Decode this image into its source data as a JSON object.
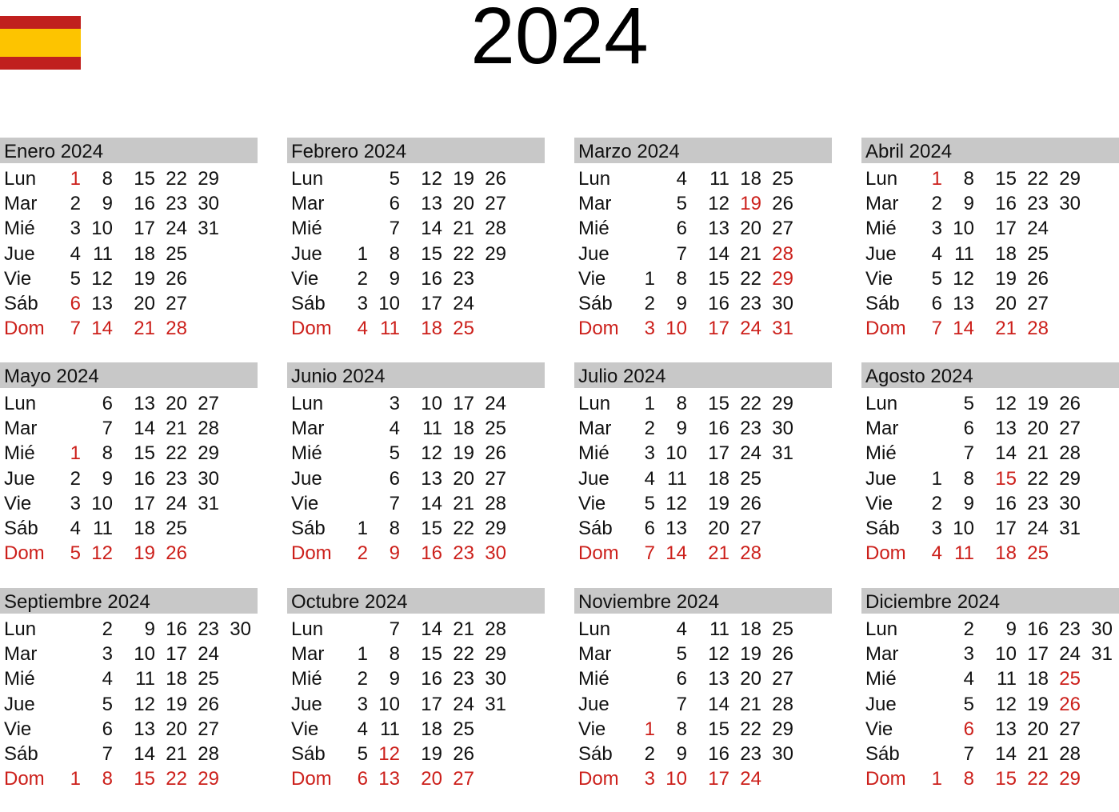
{
  "year": "2024",
  "day_names": [
    "Lun",
    "Mar",
    "Mié",
    "Jue",
    "Vie",
    "Sáb",
    "Dom"
  ],
  "colors": {
    "holiday": "#cc1f1a",
    "header_bg": "#c8c8c8",
    "flag_red": "#c0201e",
    "flag_yellow": "#fdc400"
  },
  "months": [
    {
      "name": "Enero 2024",
      "weeks": [
        [
          1,
          2,
          3,
          4,
          5,
          6,
          7
        ],
        [
          8,
          9,
          10,
          11,
          12,
          13,
          14
        ],
        [
          15,
          16,
          17,
          18,
          19,
          20,
          21
        ],
        [
          22,
          23,
          24,
          25,
          26,
          27,
          28
        ],
        [
          29,
          30,
          31,
          null,
          null,
          null,
          null
        ]
      ],
      "red": [
        1,
        6,
        7,
        14,
        21,
        28
      ]
    },
    {
      "name": "Febrero 2024",
      "weeks": [
        [
          null,
          null,
          null,
          1,
          2,
          3,
          4
        ],
        [
          5,
          6,
          7,
          8,
          9,
          10,
          11
        ],
        [
          12,
          13,
          14,
          15,
          16,
          17,
          18
        ],
        [
          19,
          20,
          21,
          22,
          23,
          24,
          25
        ],
        [
          26,
          27,
          28,
          29,
          null,
          null,
          null
        ]
      ],
      "red": [
        4,
        11,
        18,
        25
      ]
    },
    {
      "name": "Marzo 2024",
      "weeks": [
        [
          null,
          null,
          null,
          null,
          1,
          2,
          3
        ],
        [
          4,
          5,
          6,
          7,
          8,
          9,
          10
        ],
        [
          11,
          12,
          13,
          14,
          15,
          16,
          17
        ],
        [
          18,
          19,
          20,
          21,
          22,
          23,
          24
        ],
        [
          25,
          26,
          27,
          28,
          29,
          30,
          31
        ]
      ],
      "red": [
        3,
        10,
        17,
        19,
        24,
        28,
        29,
        31
      ]
    },
    {
      "name": "Abril 2024",
      "weeks": [
        [
          1,
          2,
          3,
          4,
          5,
          6,
          7
        ],
        [
          8,
          9,
          10,
          11,
          12,
          13,
          14
        ],
        [
          15,
          16,
          17,
          18,
          19,
          20,
          21
        ],
        [
          22,
          23,
          24,
          25,
          26,
          27,
          28
        ],
        [
          29,
          30,
          null,
          null,
          null,
          null,
          null
        ]
      ],
      "red": [
        1,
        7,
        14,
        21,
        28
      ]
    },
    {
      "name": "Mayo 2024",
      "weeks": [
        [
          null,
          null,
          1,
          2,
          3,
          4,
          5
        ],
        [
          6,
          7,
          8,
          9,
          10,
          11,
          12
        ],
        [
          13,
          14,
          15,
          16,
          17,
          18,
          19
        ],
        [
          20,
          21,
          22,
          23,
          24,
          25,
          26
        ],
        [
          27,
          28,
          29,
          30,
          31,
          null,
          null
        ]
      ],
      "red": [
        1,
        5,
        12,
        19,
        26
      ]
    },
    {
      "name": "Junio 2024",
      "weeks": [
        [
          null,
          null,
          null,
          null,
          null,
          1,
          2
        ],
        [
          3,
          4,
          5,
          6,
          7,
          8,
          9
        ],
        [
          10,
          11,
          12,
          13,
          14,
          15,
          16
        ],
        [
          17,
          18,
          19,
          20,
          21,
          22,
          23
        ],
        [
          24,
          25,
          26,
          27,
          28,
          29,
          30
        ]
      ],
      "red": [
        2,
        9,
        16,
        23,
        30
      ]
    },
    {
      "name": "Julio 2024",
      "weeks": [
        [
          1,
          2,
          3,
          4,
          5,
          6,
          7
        ],
        [
          8,
          9,
          10,
          11,
          12,
          13,
          14
        ],
        [
          15,
          16,
          17,
          18,
          19,
          20,
          21
        ],
        [
          22,
          23,
          24,
          25,
          26,
          27,
          28
        ],
        [
          29,
          30,
          31,
          null,
          null,
          null,
          null
        ]
      ],
      "red": [
        7,
        14,
        21,
        28
      ]
    },
    {
      "name": "Agosto 2024",
      "weeks": [
        [
          null,
          null,
          null,
          1,
          2,
          3,
          4
        ],
        [
          5,
          6,
          7,
          8,
          9,
          10,
          11
        ],
        [
          12,
          13,
          14,
          15,
          16,
          17,
          18
        ],
        [
          19,
          20,
          21,
          22,
          23,
          24,
          25
        ],
        [
          26,
          27,
          28,
          29,
          30,
          31,
          null
        ]
      ],
      "red": [
        4,
        11,
        15,
        18,
        25
      ]
    },
    {
      "name": "Septiembre 2024",
      "weeks": [
        [
          null,
          null,
          null,
          null,
          null,
          null,
          1
        ],
        [
          2,
          3,
          4,
          5,
          6,
          7,
          8
        ],
        [
          9,
          10,
          11,
          12,
          13,
          14,
          15
        ],
        [
          16,
          17,
          18,
          19,
          20,
          21,
          22
        ],
        [
          23,
          24,
          25,
          26,
          27,
          28,
          29
        ],
        [
          30,
          null,
          null,
          null,
          null,
          null,
          null
        ]
      ],
      "red": [
        1,
        8,
        15,
        22,
        29
      ]
    },
    {
      "name": "Octubre 2024",
      "weeks": [
        [
          null,
          1,
          2,
          3,
          4,
          5,
          6
        ],
        [
          7,
          8,
          9,
          10,
          11,
          12,
          13
        ],
        [
          14,
          15,
          16,
          17,
          18,
          19,
          20
        ],
        [
          21,
          22,
          23,
          24,
          25,
          26,
          27
        ],
        [
          28,
          29,
          30,
          31,
          null,
          null,
          null
        ]
      ],
      "red": [
        6,
        12,
        13,
        20,
        27
      ]
    },
    {
      "name": "Noviembre 2024",
      "weeks": [
        [
          null,
          null,
          null,
          null,
          1,
          2,
          3
        ],
        [
          4,
          5,
          6,
          7,
          8,
          9,
          10
        ],
        [
          11,
          12,
          13,
          14,
          15,
          16,
          17
        ],
        [
          18,
          19,
          20,
          21,
          22,
          23,
          24
        ],
        [
          25,
          26,
          27,
          28,
          29,
          30,
          null
        ]
      ],
      "red": [
        1,
        3,
        10,
        17,
        24
      ]
    },
    {
      "name": "Diciembre 2024",
      "weeks": [
        [
          null,
          null,
          null,
          null,
          null,
          null,
          1
        ],
        [
          2,
          3,
          4,
          5,
          6,
          7,
          8
        ],
        [
          9,
          10,
          11,
          12,
          13,
          14,
          15
        ],
        [
          16,
          17,
          18,
          19,
          20,
          21,
          22
        ],
        [
          23,
          24,
          25,
          26,
          27,
          28,
          29
        ],
        [
          30,
          31,
          null,
          null,
          null,
          null,
          null
        ]
      ],
      "red": [
        1,
        6,
        8,
        15,
        22,
        25,
        26,
        29
      ]
    }
  ]
}
